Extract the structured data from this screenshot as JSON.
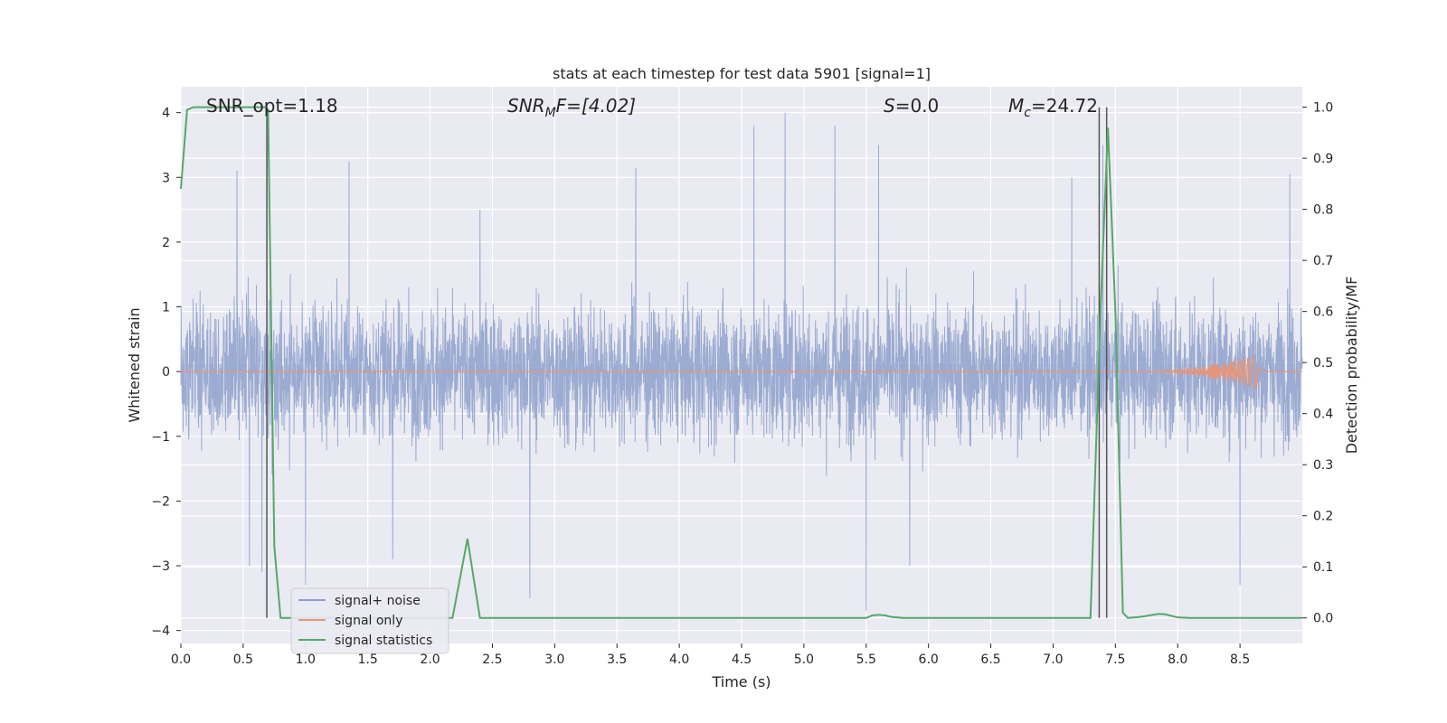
{
  "chart_data": {
    "type": "line",
    "title": "stats at each timestep for test data 5901 [signal=1]",
    "xlabel": "Time (s)",
    "ylabel": "Whitened strain",
    "ylabel_right": "Detection probability/MF",
    "xlim": [
      0.0,
      9.0
    ],
    "ylim": [
      -4.2,
      4.4
    ],
    "ylim_right": [
      -0.05,
      1.04
    ],
    "x_ticks": [
      "0.0",
      "0.5",
      "1.0",
      "1.5",
      "2.0",
      "2.5",
      "3.0",
      "3.5",
      "4.0",
      "4.5",
      "5.0",
      "5.5",
      "6.0",
      "6.5",
      "7.0",
      "7.5",
      "8.0",
      "8.5"
    ],
    "y_ticks": [
      "4",
      "3",
      "2",
      "1",
      "0",
      "−1",
      "−2",
      "−3",
      "−4"
    ],
    "y_ticks_right": [
      "1.0",
      "0.9",
      "0.8",
      "0.7",
      "0.6",
      "0.5",
      "0.4",
      "0.3",
      "0.2",
      "0.1",
      "0.0"
    ],
    "grid": true,
    "legend_position": "lower-left",
    "annotations": {
      "snr_opt": "SNR_opt=1.18",
      "snr_mf_prefix": "SNR",
      "snr_mf_sub": "M",
      "snr_mf_suffix": "F=[4.02]",
      "s_var": "S",
      "s_value": "=0.0",
      "mc_var": "M",
      "mc_sub": "c",
      "mc_value": "=24.72"
    },
    "series": [
      {
        "name": "signal+ noise",
        "color": "#8da0cb",
        "description_note": "dense noise trace",
        "envelope_typical": [
          -1.4,
          1.4
        ],
        "peaks_up": [
          [
            0.45,
            3.1
          ],
          [
            1.35,
            3.25
          ],
          [
            2.4,
            2.5
          ],
          [
            3.65,
            3.15
          ],
          [
            4.6,
            3.8
          ],
          [
            4.85,
            4.0
          ],
          [
            5.25,
            3.8
          ],
          [
            5.6,
            3.5
          ],
          [
            7.15,
            3.0
          ],
          [
            7.4,
            3.5
          ],
          [
            8.9,
            3.05
          ]
        ],
        "peaks_down": [
          [
            0.55,
            -3.0
          ],
          [
            0.65,
            -3.1
          ],
          [
            1.0,
            -3.3
          ],
          [
            1.7,
            -2.9
          ],
          [
            2.8,
            -3.5
          ],
          [
            5.5,
            -3.7
          ],
          [
            5.85,
            -3.0
          ],
          [
            8.5,
            -3.3
          ]
        ]
      },
      {
        "name": "signal only",
        "color": "#e5967a",
        "chirp_start": 7.6,
        "chirp_end": 8.65,
        "chirp_peak_amplitude": 0.28
      },
      {
        "name": "signal statistics",
        "color": "#55a868",
        "axis": "right",
        "x": [
          0.0,
          0.05,
          0.1,
          0.15,
          0.2,
          0.3,
          0.4,
          0.5,
          0.6,
          0.65,
          0.68,
          0.7,
          0.75,
          0.8,
          0.9,
          1.0,
          1.5,
          2.0,
          2.18,
          2.3,
          2.4,
          2.5,
          3.0,
          4.0,
          5.0,
          5.5,
          5.55,
          5.6,
          5.65,
          5.7,
          5.8,
          6.0,
          7.0,
          7.3,
          7.38,
          7.44,
          7.5,
          7.56,
          7.6,
          7.7,
          7.8,
          7.85,
          7.9,
          7.95,
          8.0,
          8.1,
          8.5,
          9.0
        ],
        "y": [
          0.84,
          0.995,
          1.0,
          1.0,
          1.0,
          1.0,
          1.0,
          1.0,
          1.0,
          1.0,
          1.0,
          0.995,
          0.14,
          0.0,
          0.0,
          0.0,
          0.0,
          0.0,
          0.0,
          0.155,
          0.0,
          0.0,
          0.0,
          0.0,
          0.0,
          0.0,
          0.005,
          0.006,
          0.005,
          0.002,
          0.0,
          0.0,
          0.0,
          0.0,
          0.6,
          0.96,
          0.6,
          0.01,
          0.0,
          0.002,
          0.006,
          0.008,
          0.007,
          0.004,
          0.001,
          0.0,
          0.0,
          0.0
        ]
      }
    ],
    "vertical_lines": [
      0.69,
      7.37,
      7.43
    ]
  }
}
